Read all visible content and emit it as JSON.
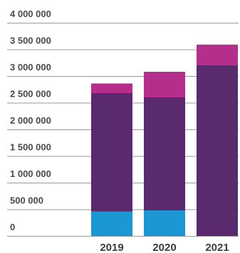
{
  "chart_data": {
    "type": "bar",
    "stacked": true,
    "categories": [
      "2019",
      "2020",
      "2021"
    ],
    "series": [
      {
        "color": "#1b97d4",
        "values": [
          460000,
          480000,
          0
        ]
      },
      {
        "color": "#5a2a6e",
        "values": [
          2220000,
          2120000,
          3210000
        ]
      },
      {
        "color": "#b52e8c",
        "values": [
          180000,
          480000,
          380000
        ]
      }
    ],
    "y_ticks": [
      "0",
      "500 000",
      "1 000 000",
      "1 500 000",
      "2 000 000",
      "2 500 000",
      "3 000 000",
      "3 500 000",
      "4 000 000"
    ],
    "ylim": [
      0,
      4000000
    ],
    "grid": true
  }
}
